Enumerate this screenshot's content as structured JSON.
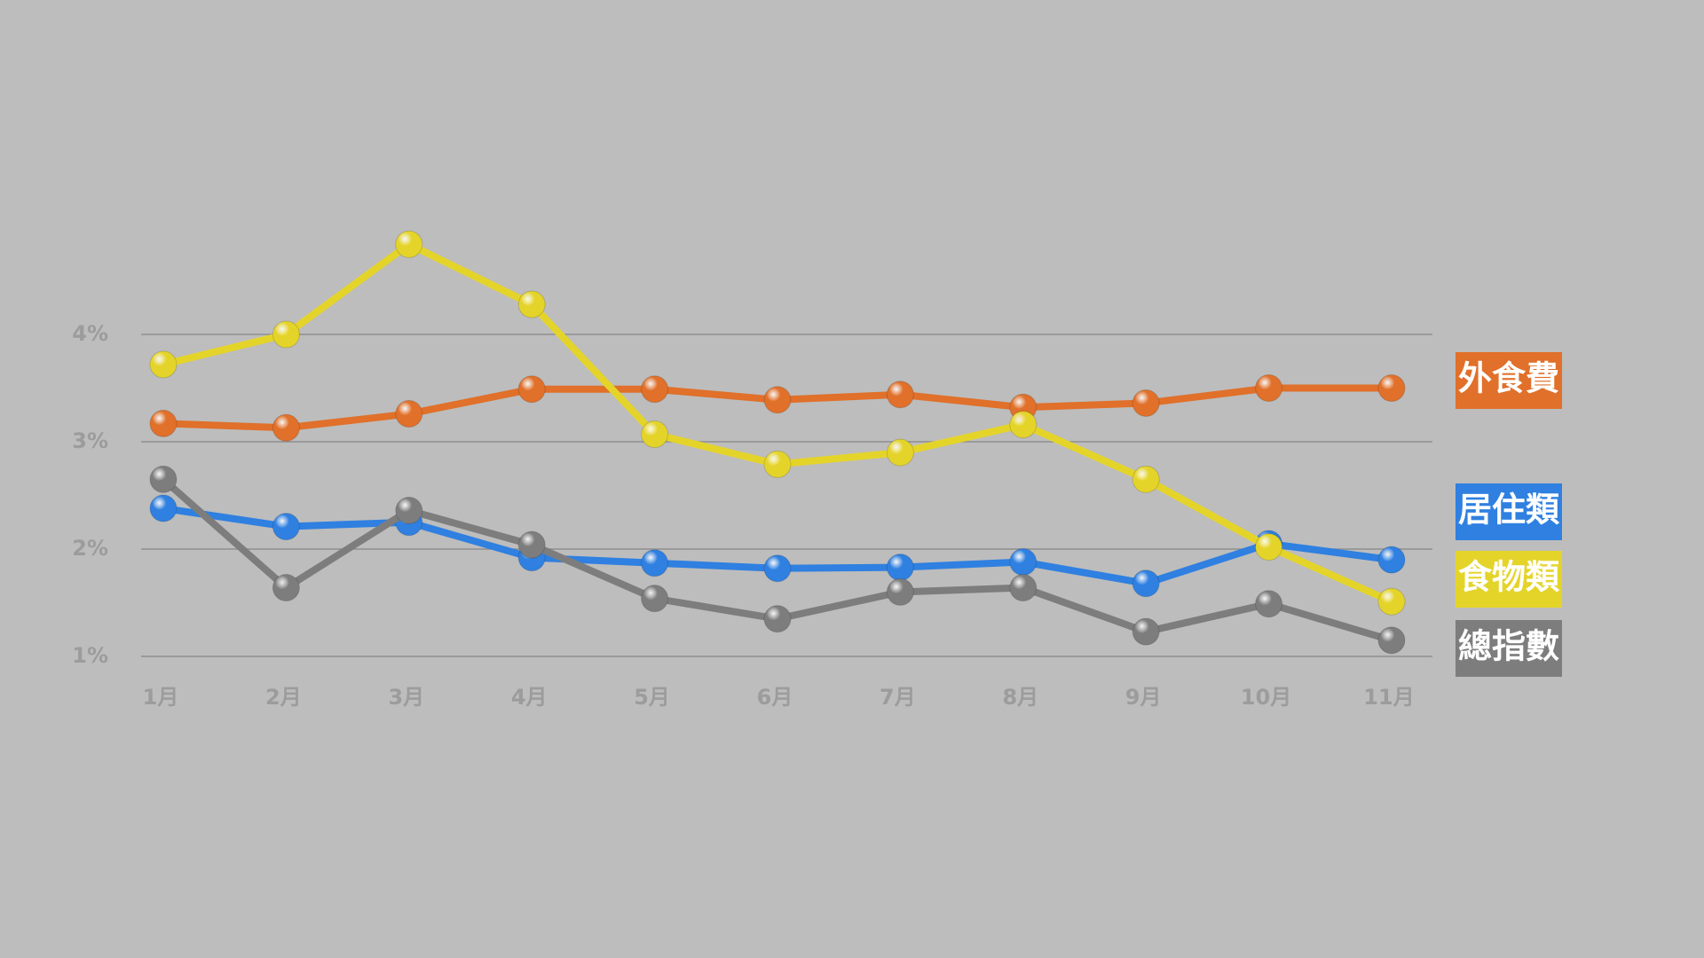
{
  "chart_data": {
    "type": "line",
    "categories": [
      "1月",
      "2月",
      "3月",
      "4月",
      "5月",
      "6月",
      "7月",
      "8月",
      "9月",
      "10月",
      "11月"
    ],
    "series": [
      {
        "name": "外食費",
        "color": "#e0702a",
        "values": [
          3.17,
          3.13,
          3.26,
          3.49,
          3.49,
          3.39,
          3.44,
          3.32,
          3.36,
          3.5,
          3.5
        ]
      },
      {
        "name": "居住類",
        "color": "#2f80e0",
        "values": [
          2.38,
          2.21,
          2.25,
          1.92,
          1.87,
          1.82,
          1.83,
          1.88,
          1.68,
          2.05,
          1.9
        ]
      },
      {
        "name": "食物類",
        "color": "#e4d42a",
        "values": [
          3.72,
          4.0,
          4.84,
          4.28,
          3.07,
          2.79,
          2.9,
          3.16,
          2.65,
          2.02,
          1.51
        ]
      },
      {
        "name": "總指數",
        "color": "#7d7d7d",
        "values": [
          2.65,
          1.64,
          2.36,
          2.04,
          1.54,
          1.35,
          1.6,
          1.64,
          1.23,
          1.49,
          1.15
        ]
      }
    ],
    "ylim": [
      1,
      5
    ],
    "yticks": [
      {
        "value": 1,
        "label": "1%"
      },
      {
        "value": 2,
        "label": "2%"
      },
      {
        "value": 3,
        "label": "3%"
      },
      {
        "value": 4,
        "label": "4%"
      }
    ],
    "grid": true
  }
}
